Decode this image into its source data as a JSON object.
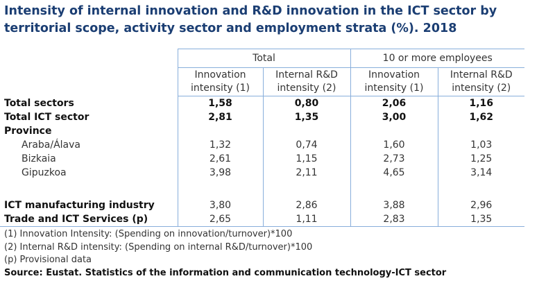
{
  "title": "Intensity of internal innovation and R&D innovation in the ICT sector by territorial scope, activity sector and employment strata (%). 2018",
  "header": {
    "groups": [
      "Total",
      "10 or more employees"
    ],
    "columns": [
      [
        "Innovation",
        "intensity (1)"
      ],
      [
        "Internal R&D",
        "intensity (2)"
      ],
      [
        "Innovation",
        "intensity (1)"
      ],
      [
        "Internal R&D",
        "intensity (2)"
      ]
    ]
  },
  "rows": [
    {
      "label": "Total sectors",
      "values": [
        "1,58",
        "0,80",
        "2,06",
        "1,16"
      ]
    },
    {
      "label": "Total ICT sector",
      "values": [
        "2,81",
        "1,35",
        "3,00",
        "1,62"
      ]
    },
    {
      "label": "Province",
      "values": [
        "",
        "",
        "",
        ""
      ]
    },
    {
      "label": "Araba/Álava",
      "values": [
        "1,32",
        "0,74",
        "1,60",
        "1,03"
      ]
    },
    {
      "label": "Bizkaia",
      "values": [
        "2,61",
        "1,15",
        "2,73",
        "1,25"
      ]
    },
    {
      "label": "Gipuzkoa",
      "values": [
        "3,98",
        "2,11",
        "4,65",
        "3,14"
      ]
    },
    {
      "label": "ICT manufacturing industry",
      "values": [
        "3,80",
        "2,86",
        "3,88",
        "2,96"
      ]
    },
    {
      "label": "Trade and ICT Services (p)",
      "values": [
        "2,65",
        "1,11",
        "2,83",
        "1,35"
      ]
    }
  ],
  "notes": [
    "(1) Innovation Intensity: (Spending on innovation/turnover)*100",
    "(2) Internal R&D intensity: (Spending on internal R&D/turnover)*100",
    "(p) Provisional data"
  ],
  "source": "Source: Eustat. Statistics of the information and communication technology-ICT sector"
}
